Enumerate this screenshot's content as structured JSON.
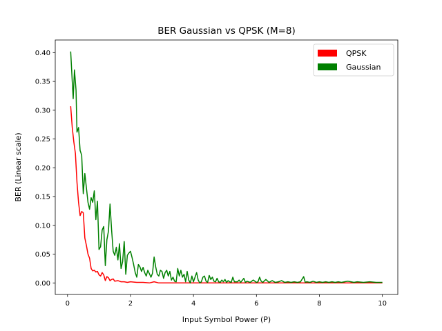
{
  "chart_data": {
    "type": "line",
    "title": "BER Gaussian vs QPSK (M=8)",
    "xlabel": "Input Symbol Power (P)",
    "ylabel": "BER (Linear scale)",
    "xlim": [
      -0.39,
      10.49
    ],
    "ylim": [
      -0.02,
      0.422
    ],
    "xticks": [
      0,
      2,
      4,
      6,
      8,
      10
    ],
    "yticks": [
      0.0,
      0.05,
      0.1,
      0.15,
      0.2,
      0.25,
      0.3,
      0.35,
      0.4
    ],
    "xtick_labels": [
      "0",
      "2",
      "4",
      "6",
      "8",
      "10"
    ],
    "ytick_labels": [
      "0.00",
      "0.05",
      "0.10",
      "0.15",
      "0.20",
      "0.25",
      "0.30",
      "0.35",
      "0.40"
    ],
    "grid": false,
    "legend_position": "top-right",
    "series": [
      {
        "name": "QPSK",
        "color": "#ff0000",
        "points": [
          [
            0.1,
            0.307
          ],
          [
            0.15,
            0.27
          ],
          [
            0.2,
            0.245
          ],
          [
            0.25,
            0.225
          ],
          [
            0.3,
            0.175
          ],
          [
            0.35,
            0.14
          ],
          [
            0.4,
            0.117
          ],
          [
            0.45,
            0.124
          ],
          [
            0.5,
            0.122
          ],
          [
            0.55,
            0.078
          ],
          [
            0.6,
            0.065
          ],
          [
            0.65,
            0.05
          ],
          [
            0.7,
            0.043
          ],
          [
            0.75,
            0.025
          ],
          [
            0.8,
            0.021
          ],
          [
            0.85,
            0.022
          ],
          [
            0.9,
            0.019
          ],
          [
            0.95,
            0.02
          ],
          [
            1.0,
            0.014
          ],
          [
            1.05,
            0.012
          ],
          [
            1.1,
            0.018
          ],
          [
            1.15,
            0.014
          ],
          [
            1.2,
            0.004
          ],
          [
            1.25,
            0.011
          ],
          [
            1.3,
            0.009
          ],
          [
            1.35,
            0.004
          ],
          [
            1.4,
            0.006
          ],
          [
            1.45,
            0.007
          ],
          [
            1.5,
            0.003
          ],
          [
            1.6,
            0.004
          ],
          [
            1.7,
            0.002
          ],
          [
            1.8,
            0.002
          ],
          [
            1.9,
            0.001
          ],
          [
            2.0,
            0.002
          ],
          [
            2.2,
            0.001
          ],
          [
            2.4,
            0.001
          ],
          [
            2.6,
            0.0
          ],
          [
            2.75,
            0.002
          ],
          [
            2.9,
            0.0
          ],
          [
            3.2,
            0.0
          ],
          [
            3.6,
            0.0
          ],
          [
            4.0,
            0.0
          ],
          [
            5.0,
            0.0
          ],
          [
            6.0,
            0.0
          ],
          [
            7.0,
            0.0
          ],
          [
            8.0,
            0.0
          ],
          [
            9.0,
            0.0
          ],
          [
            10.0,
            0.0
          ]
        ]
      },
      {
        "name": "Gaussian",
        "color": "#008000",
        "points": [
          [
            0.1,
            0.402
          ],
          [
            0.15,
            0.35
          ],
          [
            0.18,
            0.32
          ],
          [
            0.22,
            0.37
          ],
          [
            0.27,
            0.335
          ],
          [
            0.3,
            0.262
          ],
          [
            0.35,
            0.27
          ],
          [
            0.4,
            0.23
          ],
          [
            0.45,
            0.222
          ],
          [
            0.5,
            0.155
          ],
          [
            0.55,
            0.19
          ],
          [
            0.6,
            0.165
          ],
          [
            0.65,
            0.14
          ],
          [
            0.7,
            0.128
          ],
          [
            0.75,
            0.148
          ],
          [
            0.8,
            0.14
          ],
          [
            0.85,
            0.16
          ],
          [
            0.9,
            0.11
          ],
          [
            0.95,
            0.142
          ],
          [
            1.0,
            0.058
          ],
          [
            1.05,
            0.063
          ],
          [
            1.1,
            0.092
          ],
          [
            1.15,
            0.098
          ],
          [
            1.2,
            0.03
          ],
          [
            1.25,
            0.075
          ],
          [
            1.3,
            0.09
          ],
          [
            1.35,
            0.137
          ],
          [
            1.4,
            0.092
          ],
          [
            1.45,
            0.055
          ],
          [
            1.5,
            0.048
          ],
          [
            1.55,
            0.062
          ],
          [
            1.6,
            0.04
          ],
          [
            1.65,
            0.068
          ],
          [
            1.7,
            0.025
          ],
          [
            1.75,
            0.037
          ],
          [
            1.8,
            0.072
          ],
          [
            1.85,
            0.015
          ],
          [
            1.9,
            0.048
          ],
          [
            1.95,
            0.052
          ],
          [
            2.0,
            0.055
          ],
          [
            2.05,
            0.044
          ],
          [
            2.1,
            0.032
          ],
          [
            2.15,
            0.018
          ],
          [
            2.2,
            0.01
          ],
          [
            2.25,
            0.032
          ],
          [
            2.3,
            0.028
          ],
          [
            2.35,
            0.02
          ],
          [
            2.4,
            0.027
          ],
          [
            2.45,
            0.018
          ],
          [
            2.5,
            0.012
          ],
          [
            2.55,
            0.022
          ],
          [
            2.6,
            0.016
          ],
          [
            2.65,
            0.01
          ],
          [
            2.7,
            0.017
          ],
          [
            2.75,
            0.045
          ],
          [
            2.8,
            0.028
          ],
          [
            2.85,
            0.015
          ],
          [
            2.9,
            0.012
          ],
          [
            2.95,
            0.022
          ],
          [
            3.0,
            0.02
          ],
          [
            3.05,
            0.008
          ],
          [
            3.1,
            0.018
          ],
          [
            3.15,
            0.022
          ],
          [
            3.2,
            0.012
          ],
          [
            3.25,
            0.02
          ],
          [
            3.3,
            0.005
          ],
          [
            3.35,
            0.01
          ],
          [
            3.4,
            0.003
          ],
          [
            3.45,
            0.002
          ],
          [
            3.5,
            0.025
          ],
          [
            3.55,
            0.012
          ],
          [
            3.6,
            0.022
          ],
          [
            3.65,
            0.01
          ],
          [
            3.7,
            0.015
          ],
          [
            3.75,
            0.002
          ],
          [
            3.8,
            0.02
          ],
          [
            3.85,
            0.005
          ],
          [
            3.9,
            0.0
          ],
          [
            3.95,
            0.012
          ],
          [
            4.0,
            0.002
          ],
          [
            4.1,
            0.018
          ],
          [
            4.15,
            0.005
          ],
          [
            4.2,
            0.0
          ],
          [
            4.25,
            0.002
          ],
          [
            4.3,
            0.01
          ],
          [
            4.35,
            0.012
          ],
          [
            4.4,
            0.003
          ],
          [
            4.45,
            0.001
          ],
          [
            4.5,
            0.013
          ],
          [
            4.55,
            0.006
          ],
          [
            4.6,
            0.01
          ],
          [
            4.65,
            0.003
          ],
          [
            4.7,
            0.002
          ],
          [
            4.75,
            0.008
          ],
          [
            4.8,
            0.002
          ],
          [
            4.85,
            0.001
          ],
          [
            4.9,
            0.005
          ],
          [
            4.95,
            0.002
          ],
          [
            5.0,
            0.006
          ],
          [
            5.05,
            0.001
          ],
          [
            5.1,
            0.004
          ],
          [
            5.15,
            0.002
          ],
          [
            5.2,
            0.001
          ],
          [
            5.25,
            0.01
          ],
          [
            5.3,
            0.002
          ],
          [
            5.4,
            0.002
          ],
          [
            5.45,
            0.005
          ],
          [
            5.5,
            0.001
          ],
          [
            5.6,
            0.008
          ],
          [
            5.65,
            0.001
          ],
          [
            5.7,
            0.003
          ],
          [
            5.8,
            0.001
          ],
          [
            5.9,
            0.005
          ],
          [
            6.0,
            0.001
          ],
          [
            6.05,
            0.002
          ],
          [
            6.1,
            0.01
          ],
          [
            6.15,
            0.003
          ],
          [
            6.2,
            0.001
          ],
          [
            6.3,
            0.006
          ],
          [
            6.4,
            0.001
          ],
          [
            6.5,
            0.004
          ],
          [
            6.6,
            0.001
          ],
          [
            6.7,
            0.002
          ],
          [
            6.8,
            0.004
          ],
          [
            6.9,
            0.001
          ],
          [
            7.0,
            0.002
          ],
          [
            7.1,
            0.001
          ],
          [
            7.2,
            0.002
          ],
          [
            7.3,
            0.001
          ],
          [
            7.4,
            0.002
          ],
          [
            7.5,
            0.011
          ],
          [
            7.55,
            0.001
          ],
          [
            7.6,
            0.002
          ],
          [
            7.7,
            0.001
          ],
          [
            7.8,
            0.003
          ],
          [
            7.9,
            0.001
          ],
          [
            8.0,
            0.002
          ],
          [
            8.1,
            0.001
          ],
          [
            8.2,
            0.002
          ],
          [
            8.3,
            0.001
          ],
          [
            8.4,
            0.002
          ],
          [
            8.5,
            0.001
          ],
          [
            8.6,
            0.002
          ],
          [
            8.7,
            0.001
          ],
          [
            8.8,
            0.002
          ],
          [
            8.9,
            0.003
          ],
          [
            9.0,
            0.002
          ],
          [
            9.1,
            0.001
          ],
          [
            9.2,
            0.002
          ],
          [
            9.4,
            0.001
          ],
          [
            9.6,
            0.002
          ],
          [
            9.8,
            0.001
          ],
          [
            10.0,
            0.001
          ]
        ]
      }
    ]
  }
}
